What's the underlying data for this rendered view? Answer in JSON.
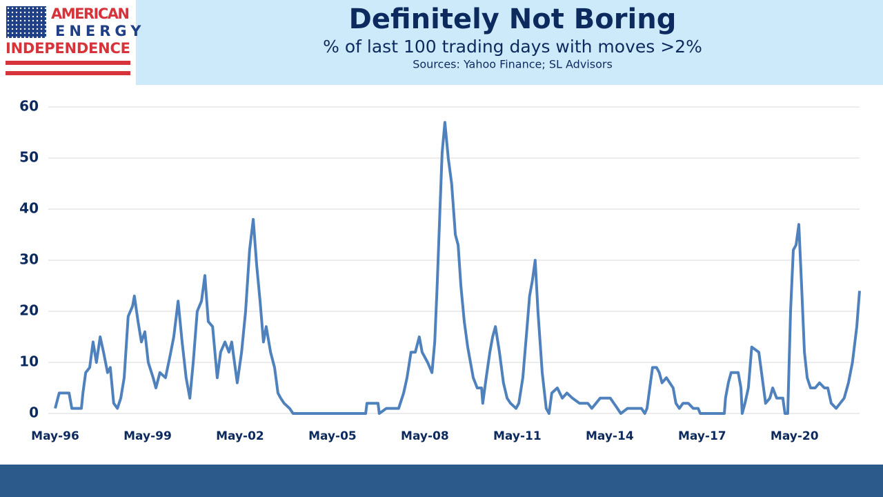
{
  "logo": {
    "lines": [
      "AMERICAN",
      "ENERGY",
      "INDEPENDENCE"
    ]
  },
  "chart_data": {
    "type": "line",
    "title": "Definitely Not Boring",
    "subtitle": "% of last 100 trading days with moves >2%",
    "source": "Sources: Yahoo Finance; SL Advisors",
    "x": [
      1996.33,
      1996.46,
      1996.78,
      1996.87,
      1997.18,
      1997.23,
      1997.32,
      1997.45,
      1997.56,
      1997.67,
      1997.79,
      1997.9,
      1998.03,
      1998.12,
      1998.23,
      1998.35,
      1998.46,
      1998.57,
      1998.7,
      1998.84,
      1998.9,
      1999.02,
      1999.13,
      1999.24,
      1999.35,
      1999.51,
      1999.6,
      1999.73,
      1999.91,
      2000.05,
      2000.18,
      2000.32,
      2000.45,
      2000.58,
      2000.7,
      2000.81,
      2000.94,
      2001.08,
      2001.19,
      2001.3,
      2001.44,
      2001.59,
      2001.7,
      2001.84,
      2001.97,
      2002.06,
      2002.15,
      2002.24,
      2002.38,
      2002.51,
      2002.64,
      2002.76,
      2002.87,
      2002.98,
      2003.09,
      2003.18,
      2003.32,
      2003.45,
      2003.56,
      2003.65,
      2003.76,
      2003.94,
      2004.05,
      2006.41,
      2006.45,
      2006.81,
      2006.85,
      2007.08,
      2007.48,
      2007.64,
      2007.75,
      2007.88,
      2008.02,
      2008.15,
      2008.24,
      2008.42,
      2008.56,
      2008.65,
      2008.73,
      2008.82,
      2008.89,
      2008.98,
      2009.09,
      2009.2,
      2009.32,
      2009.41,
      2009.5,
      2009.61,
      2009.72,
      2009.81,
      2009.9,
      2010.03,
      2010.17,
      2010.21,
      2010.32,
      2010.44,
      2010.53,
      2010.62,
      2010.75,
      2010.88,
      2011.0,
      2011.11,
      2011.29,
      2011.38,
      2011.51,
      2011.65,
      2011.73,
      2011.82,
      2011.91,
      2012.0,
      2012.14,
      2012.27,
      2012.36,
      2012.45,
      2012.63,
      2012.79,
      2012.94,
      2013.12,
      2013.35,
      2013.62,
      2013.75,
      2014.02,
      2014.35,
      2014.58,
      2014.69,
      2014.91,
      2015.36,
      2015.47,
      2015.54,
      2015.63,
      2015.72,
      2015.85,
      2015.94,
      2016.03,
      2016.17,
      2016.39,
      2016.48,
      2016.59,
      2016.71,
      2016.88,
      2017.04,
      2017.2,
      2017.27,
      2018.05,
      2018.09,
      2018.18,
      2018.27,
      2018.5,
      2018.59,
      2018.63,
      2018.72,
      2018.83,
      2018.94,
      2019.17,
      2019.28,
      2019.39,
      2019.53,
      2019.62,
      2019.75,
      2019.95,
      2020.02,
      2020.11,
      2020.2,
      2020.29,
      2020.38,
      2020.47,
      2020.56,
      2020.65,
      2020.74,
      2020.85,
      2021.0,
      2021.14,
      2021.3,
      2021.41,
      2021.52,
      2021.68,
      2021.81,
      2021.94,
      2022.08,
      2022.21,
      2022.35,
      2022.44
    ],
    "series": [
      {
        "name": "Moves >2%",
        "color": "#4f81bd",
        "values": [
          1,
          4,
          4,
          1,
          1,
          4,
          8,
          9,
          14,
          10,
          15,
          12,
          8,
          9,
          2,
          1,
          3,
          7,
          19,
          21,
          23,
          18,
          14,
          16,
          10,
          7,
          5,
          8,
          7,
          11,
          15,
          22,
          14,
          7,
          3,
          10,
          20,
          22,
          27,
          18,
          17,
          7,
          12,
          14,
          12,
          14,
          10,
          6,
          12,
          20,
          32,
          38,
          29,
          22,
          14,
          17,
          12,
          9,
          4,
          3,
          2,
          1,
          0,
          0,
          2,
          2,
          0,
          1,
          1,
          4,
          7,
          12,
          12,
          15,
          12,
          10,
          8,
          14,
          25,
          40,
          51,
          57,
          50,
          45,
          35,
          33,
          25,
          18,
          13,
          10,
          7,
          5,
          5,
          2,
          7,
          12,
          15,
          17,
          12,
          6,
          3,
          2,
          1,
          2,
          7,
          17,
          23,
          26,
          30,
          20,
          8,
          1,
          0,
          4,
          5,
          3,
          4,
          3,
          2,
          2,
          1,
          3,
          3,
          1,
          0,
          1,
          1,
          0,
          1,
          5,
          9,
          9,
          8,
          6,
          7,
          5,
          2,
          1,
          2,
          2,
          1,
          1,
          0,
          0,
          3,
          6,
          8,
          8,
          5,
          0,
          2,
          5,
          13,
          12,
          7,
          2,
          3,
          5,
          3,
          3,
          0,
          0,
          20,
          32,
          33,
          37,
          25,
          12,
          7,
          5,
          5,
          6,
          5,
          5,
          2,
          1,
          2,
          3,
          6,
          10,
          17,
          24
        ]
      }
    ],
    "xlim": [
      1996.33,
      2022.44
    ],
    "xticks": [
      {
        "value": 1996.33,
        "label": "May-96"
      },
      {
        "value": 1999.33,
        "label": "May-99"
      },
      {
        "value": 2002.33,
        "label": "May-02"
      },
      {
        "value": 2005.33,
        "label": "May-05"
      },
      {
        "value": 2008.33,
        "label": "May-08"
      },
      {
        "value": 2011.33,
        "label": "May-11"
      },
      {
        "value": 2014.33,
        "label": "May-14"
      },
      {
        "value": 2017.33,
        "label": "May-17"
      },
      {
        "value": 2020.33,
        "label": "May-20"
      }
    ],
    "ylim": [
      0,
      60
    ],
    "yticks": [
      0,
      10,
      20,
      30,
      40,
      50,
      60
    ],
    "grid": true
  }
}
